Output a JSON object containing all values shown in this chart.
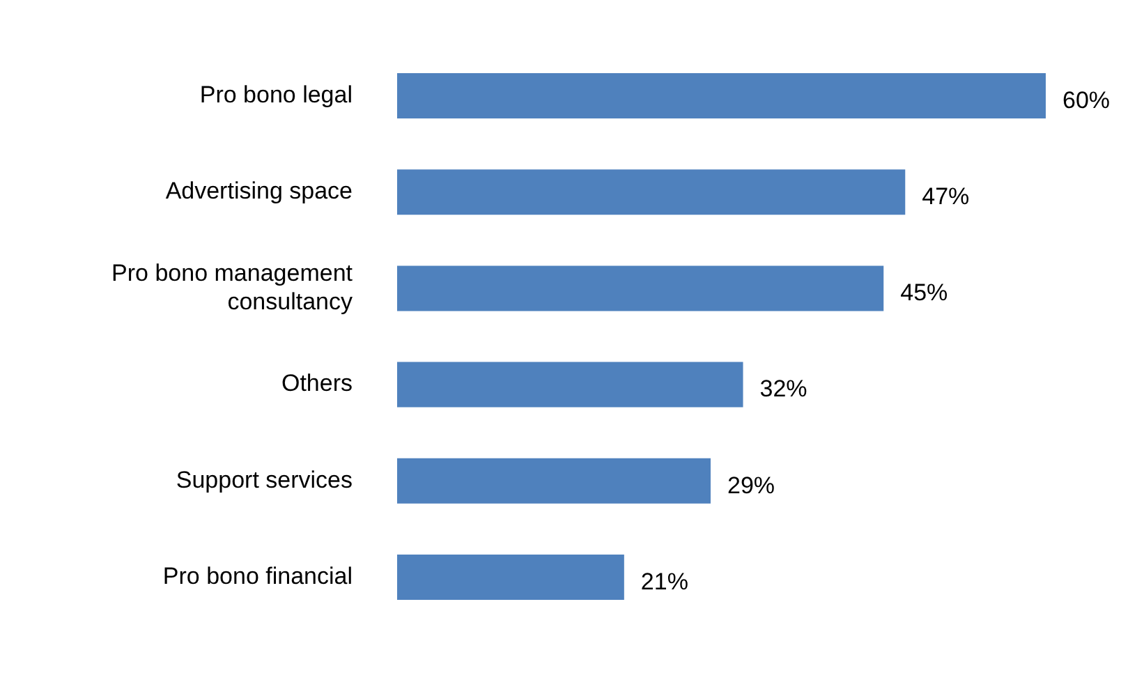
{
  "chart_data": {
    "type": "bar",
    "orientation": "horizontal",
    "categories": [
      "Pro bono legal",
      "Advertising space",
      "Pro bono management consultancy",
      "Others",
      "Support services",
      "Pro bono financial"
    ],
    "values": [
      60,
      47,
      45,
      32,
      29,
      21
    ],
    "value_labels": [
      "60%",
      "47%",
      "45%",
      "32%",
      "29%",
      "21%"
    ],
    "color": "#4f81bd",
    "legend": false
  }
}
